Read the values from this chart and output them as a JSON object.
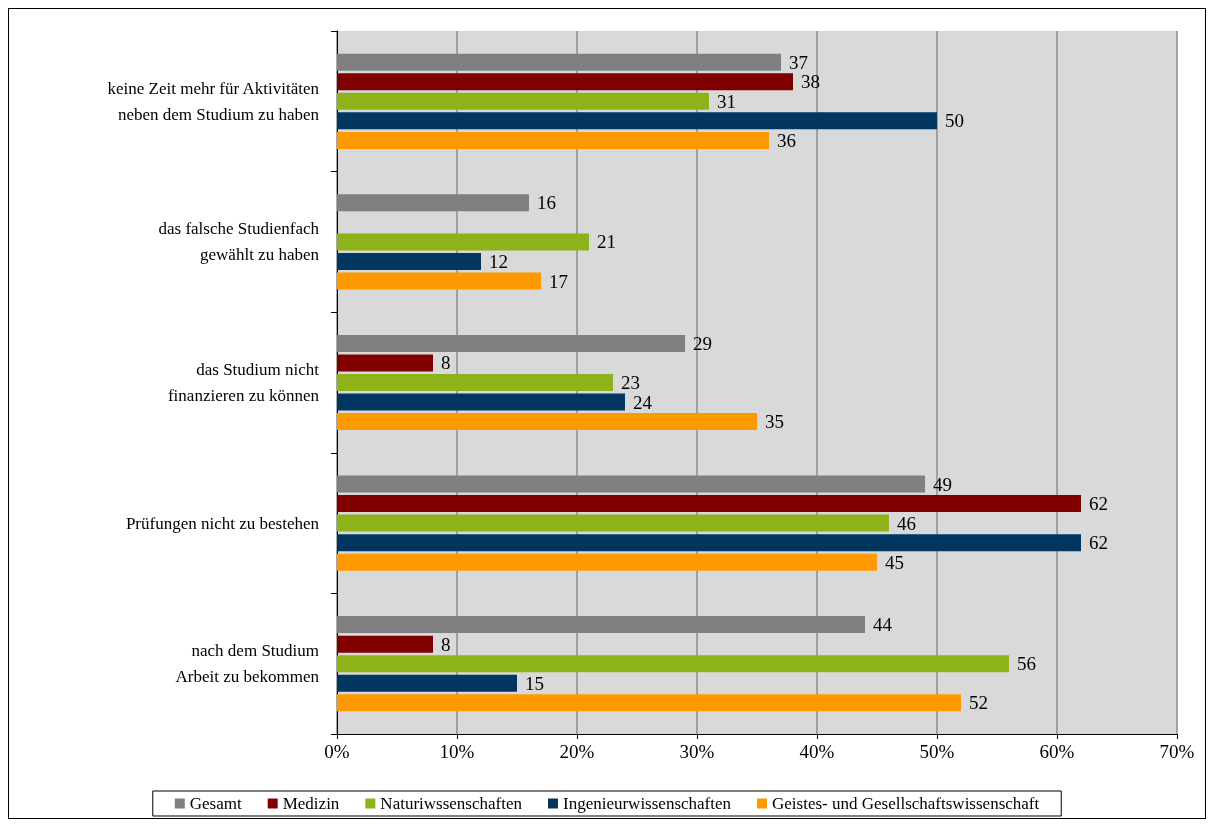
{
  "chart_data": {
    "type": "bar",
    "orientation": "horizontal",
    "categories": [
      "keine Zeit mehr für Aktivitäten\nneben dem Studium zu haben",
      "das falsche Studienfach\ngewählt zu haben",
      "das Studium nicht\nfinanzieren zu können",
      "Prüfungen nicht zu bestehen",
      "nach dem Studium\nArbeit zu bekommen"
    ],
    "series": [
      {
        "name": "Gesamt",
        "color": "#808080",
        "values": [
          37,
          16,
          29,
          49,
          44
        ]
      },
      {
        "name": "Medizin",
        "color": "#800000",
        "values": [
          38,
          null,
          8,
          62,
          8
        ]
      },
      {
        "name": "Naturiwssenschaften",
        "color": "#8db21a",
        "values": [
          31,
          21,
          23,
          46,
          56
        ]
      },
      {
        "name": "Ingenieurwissenschaften",
        "color": "#003660",
        "values": [
          50,
          12,
          24,
          62,
          15
        ]
      },
      {
        "name": "Geistes- und Gesellschaftswissenschaft",
        "color": "#ff9900",
        "values": [
          36,
          17,
          35,
          45,
          52
        ]
      }
    ],
    "xlim": [
      0,
      70
    ],
    "xticks": [
      {
        "value": 0,
        "label": "0%"
      },
      {
        "value": 10,
        "label": "10%"
      },
      {
        "value": 20,
        "label": "20%"
      },
      {
        "value": 30,
        "label": "30%"
      },
      {
        "value": 40,
        "label": "40%"
      },
      {
        "value": 50,
        "label": "50%"
      },
      {
        "value": 60,
        "label": "60%"
      },
      {
        "value": 70,
        "label": "70%"
      }
    ],
    "grid": "x",
    "legend": "bottom",
    "data_labels": true
  }
}
